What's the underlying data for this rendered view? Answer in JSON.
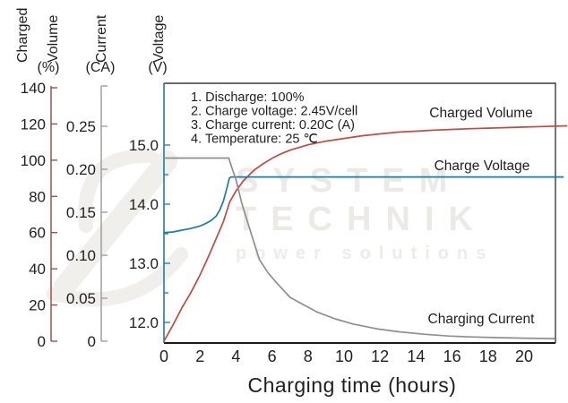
{
  "axes": {
    "volume": {
      "title_word1": "Charged",
      "title_word2": "Volume",
      "unit_label": "(%)",
      "ticks": [
        "140",
        "120",
        "100",
        "80",
        "60",
        "40",
        "20",
        "0"
      ]
    },
    "current": {
      "title": "Current",
      "unit_label": "(CA)",
      "ticks": [
        "0.25",
        "0.20",
        "0.15",
        "0.10",
        "0.05",
        "0"
      ]
    },
    "voltage": {
      "title": "Voltage",
      "unit_label": "(V)",
      "ticks": [
        "15.0",
        "14.0",
        "13.0",
        "12.0"
      ]
    },
    "x_axis": {
      "label": "Charging time (hours)",
      "ticks": [
        "0",
        "2",
        "4",
        "6",
        "8",
        "10",
        "12",
        "14",
        "16",
        "18",
        "20"
      ]
    }
  },
  "annotations": {
    "lines": [
      "1. Discharge: 100%",
      "2. Charge voltage: 2.45V/cell",
      "3. Charge current: 0.20C (A)",
      "4. Temperature: 25 ℃"
    ]
  },
  "curve_labels": {
    "charged_volume": "Charged Volume",
    "charge_voltage": "Charge Voltage",
    "charging_current": "Charging Current"
  },
  "watermark": {
    "line1": "SYSTEM",
    "line2": "TECHNIK",
    "tagline": "power solutions"
  },
  "colors": {
    "volume_curve": "#c14a43",
    "volume_axis": "#9c443e",
    "voltage_curve": "#1e7ca0",
    "current_curve": "#8f8f8f",
    "current_axis": "#999999",
    "frame": "#3c3c3c",
    "text": "#1f1f1f",
    "watermark": "#edeae6"
  },
  "chart_data": {
    "type": "line",
    "title": "",
    "xlabel": "Charging time (hours)",
    "x_range": [
      0,
      22
    ],
    "grid": false,
    "legend_position": "inline-labels",
    "axis_ranges": {
      "charged_volume_pct": [
        0,
        140
      ],
      "current_ca": [
        0,
        0.25
      ],
      "voltage_v": [
        12,
        15
      ]
    },
    "conditions": [
      "Discharge: 100%",
      "Charge voltage: 2.45V/cell",
      "Charge current: 0.20C (A)",
      "Temperature: 25 ℃"
    ],
    "series": [
      {
        "name": "Charged Volume",
        "unit": "%",
        "color": "#c14a43",
        "points": [
          [
            0,
            0
          ],
          [
            0.5,
            9
          ],
          [
            1,
            18.5
          ],
          [
            1.5,
            27
          ],
          [
            2,
            36.5
          ],
          [
            2.5,
            47.5
          ],
          [
            3,
            59
          ],
          [
            3.3,
            66
          ],
          [
            3.65,
            77
          ],
          [
            4,
            83
          ],
          [
            4.4,
            88.5
          ],
          [
            4.8,
            92.5
          ],
          [
            5,
            94.5
          ],
          [
            5.5,
            98
          ],
          [
            6,
            101
          ],
          [
            6.5,
            103.5
          ],
          [
            7,
            105.5
          ],
          [
            7.5,
            107
          ],
          [
            8,
            108.5
          ],
          [
            9,
            110.5
          ],
          [
            10,
            112
          ],
          [
            11,
            113.5
          ],
          [
            12,
            114.5
          ],
          [
            13,
            115.5
          ],
          [
            14,
            116
          ],
          [
            15,
            116.6
          ],
          [
            16,
            117
          ],
          [
            17,
            117.4
          ],
          [
            18,
            117.7
          ],
          [
            19,
            118
          ],
          [
            20,
            118.3
          ],
          [
            21,
            118.6
          ],
          [
            22.4,
            119
          ]
        ]
      },
      {
        "name": "Charge Voltage",
        "unit": "V",
        "color": "#1e7ca0",
        "points": [
          [
            0,
            13.52
          ],
          [
            0.5,
            13.53
          ],
          [
            1,
            13.56
          ],
          [
            1.5,
            13.59
          ],
          [
            2,
            13.63
          ],
          [
            2.3,
            13.67
          ],
          [
            2.6,
            13.72
          ],
          [
            2.9,
            13.8
          ],
          [
            3.1,
            13.9
          ],
          [
            3.3,
            14.05
          ],
          [
            3.5,
            14.28
          ],
          [
            3.63,
            14.44
          ],
          [
            3.72,
            14.46
          ],
          [
            22.2,
            14.46
          ]
        ]
      },
      {
        "name": "Charging Current",
        "unit": "CA",
        "color": "#8f8f8f",
        "points": [
          [
            0,
            0.213
          ],
          [
            3.6,
            0.213
          ],
          [
            3.75,
            0.203
          ],
          [
            4,
            0.188
          ],
          [
            4.33,
            0.16
          ],
          [
            4.83,
            0.126
          ],
          [
            5.3,
            0.095
          ],
          [
            5.8,
            0.079
          ],
          [
            6.3,
            0.067
          ],
          [
            7,
            0.051
          ],
          [
            7.7,
            0.043
          ],
          [
            8.5,
            0.034
          ],
          [
            9.5,
            0.026
          ],
          [
            10.5,
            0.02
          ],
          [
            11.8,
            0.0145
          ],
          [
            13,
            0.011
          ],
          [
            14.5,
            0.008
          ],
          [
            15.8,
            0.006
          ],
          [
            17,
            0.005
          ],
          [
            18.5,
            0.0042
          ],
          [
            20,
            0.0035
          ],
          [
            21.7,
            0.003
          ]
        ]
      }
    ]
  }
}
